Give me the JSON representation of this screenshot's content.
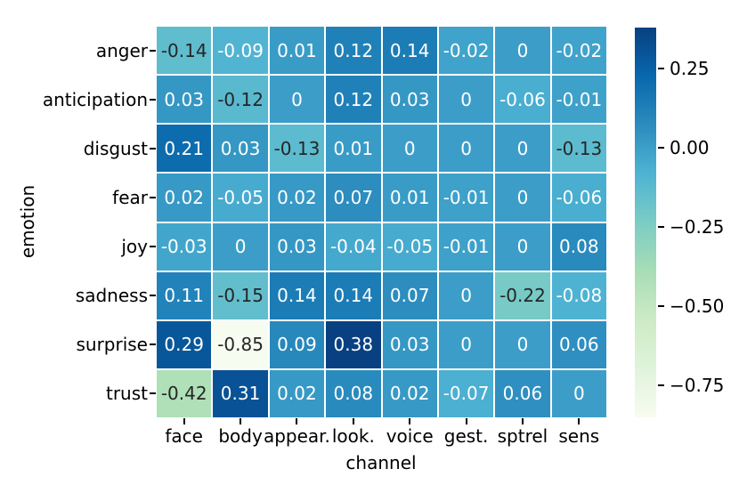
{
  "chart_data": {
    "type": "heatmap",
    "title": "",
    "xlabel": "channel",
    "ylabel": "emotion",
    "rows": [
      "anger",
      "anticipation",
      "disgust",
      "fear",
      "joy",
      "sadness",
      "surprise",
      "trust"
    ],
    "columns": [
      "face",
      "body",
      "appear.",
      "look.",
      "voice",
      "gest.",
      "sptrel",
      "sens"
    ],
    "values": [
      [
        -0.14,
        -0.09,
        0.01,
        0.12,
        0.14,
        -0.02,
        0,
        -0.02
      ],
      [
        0.03,
        -0.12,
        0,
        0.12,
        0.03,
        0,
        -0.06,
        -0.01
      ],
      [
        0.21,
        0.03,
        -0.13,
        0.01,
        0,
        0,
        0,
        -0.13
      ],
      [
        0.02,
        -0.05,
        0.02,
        0.07,
        0.01,
        -0.01,
        0,
        -0.06
      ],
      [
        -0.03,
        0,
        0.03,
        -0.04,
        -0.05,
        -0.01,
        0,
        0.08
      ],
      [
        0.11,
        -0.15,
        0.14,
        0.14,
        0.07,
        0,
        -0.22,
        -0.08
      ],
      [
        0.29,
        -0.85,
        0.09,
        0.38,
        0.03,
        0,
        0,
        0.06
      ],
      [
        -0.42,
        0.31,
        0.02,
        0.08,
        0.02,
        -0.07,
        0.06,
        0
      ]
    ],
    "cell_labels": [
      [
        "-0.14",
        "-0.09",
        "0.01",
        "0.12",
        "0.14",
        "-0.02",
        "0",
        "-0.02"
      ],
      [
        "0.03",
        "-0.12",
        "0",
        "0.12",
        "0.03",
        "0",
        "-0.06",
        "-0.01"
      ],
      [
        "0.21",
        "0.03",
        "-0.13",
        "0.01",
        "0",
        "0",
        "0",
        "-0.13"
      ],
      [
        "0.02",
        "-0.05",
        "0.02",
        "0.07",
        "0.01",
        "-0.01",
        "0",
        "-0.06"
      ],
      [
        "-0.03",
        "0",
        "0.03",
        "-0.04",
        "-0.05",
        "-0.01",
        "0",
        "0.08"
      ],
      [
        "0.11",
        "-0.15",
        "0.14",
        "0.14",
        "0.07",
        "0",
        "-0.22",
        "-0.08"
      ],
      [
        "0.29",
        "-0.85",
        "0.09",
        "0.38",
        "0.03",
        "0",
        "0",
        "0.06"
      ],
      [
        "-0.42",
        "0.31",
        "0.02",
        "0.08",
        "0.02",
        "-0.07",
        "0.06",
        "0"
      ]
    ],
    "vmin": -0.85,
    "vmax": 0.38,
    "colormap": {
      "name": "GnBu",
      "colors": [
        "#f7fcf0",
        "#e0f3db",
        "#ccebc5",
        "#a8ddb5",
        "#7bccc4",
        "#4eb3d3",
        "#2b8cbe",
        "#0868ac",
        "#084081"
      ]
    },
    "grid_line_color": "#ffffff",
    "annotation_color_dark": "#262626",
    "annotation_color_light": "#ffffff",
    "axis_text_color": "#000000",
    "colorbar": {
      "position": "right",
      "ticks": [
        {
          "label": "0.25",
          "value": 0.25
        },
        {
          "label": "0.00",
          "value": 0.0
        },
        {
          "label": "−0.25",
          "value": -0.25
        },
        {
          "label": "−0.50",
          "value": -0.5
        },
        {
          "label": "−0.75",
          "value": -0.75
        }
      ]
    },
    "legend": "colorbar-right",
    "grid": "white-cell-separators"
  }
}
